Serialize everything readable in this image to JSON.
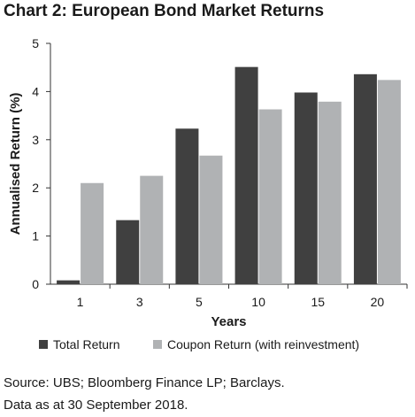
{
  "chart_data": {
    "type": "bar",
    "title": "Chart 2: European Bond Market Returns",
    "xlabel": "Years",
    "ylabel": "Annualised Return (%)",
    "categories": [
      "1",
      "3",
      "5",
      "10",
      "15",
      "20"
    ],
    "series": [
      {
        "name": "Total Return",
        "values": [
          0.08,
          1.33,
          3.23,
          4.51,
          3.98,
          4.36
        ],
        "color": "#404040"
      },
      {
        "name": "Coupon Return (with reinvestment)",
        "values": [
          2.1,
          2.25,
          2.67,
          3.63,
          3.79,
          4.24
        ],
        "color": "#b0b2b4"
      }
    ],
    "ylim": [
      0,
      5
    ],
    "yticks": [
      "0",
      "1",
      "2",
      "3",
      "4",
      "5"
    ],
    "grid": false,
    "legend_position": "bottom"
  },
  "source": {
    "line1": "Source: UBS; Bloomberg Finance LP; Barclays.",
    "line2": "Data as at 30 September 2018."
  }
}
